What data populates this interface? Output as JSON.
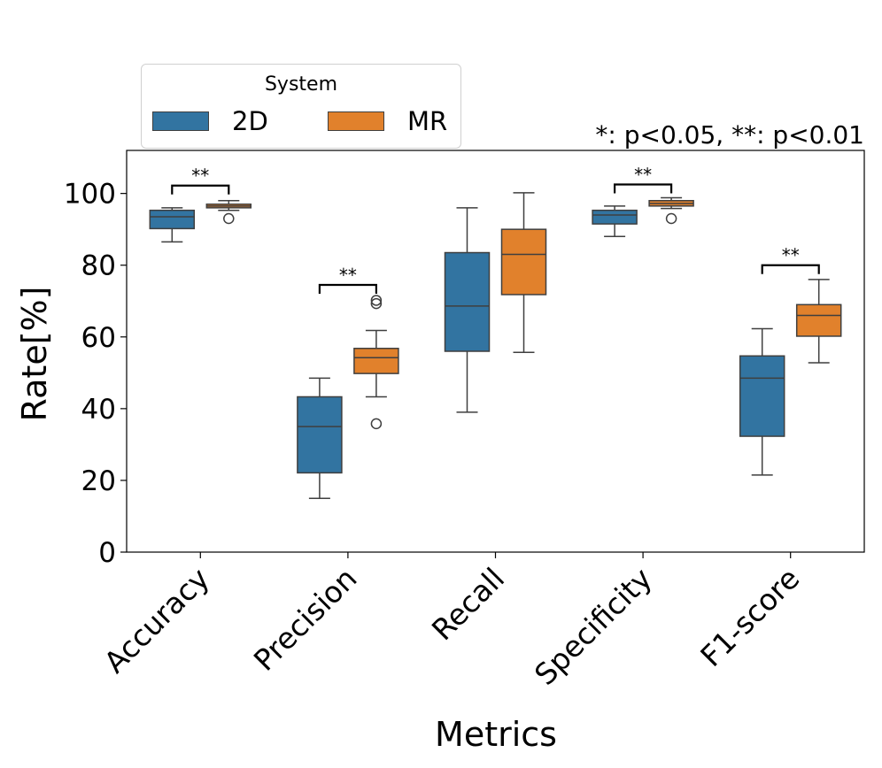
{
  "chart_data": {
    "type": "box",
    "xlabel": "Metrics",
    "ylabel": "Rate[%]",
    "ylim": [
      0,
      112
    ],
    "yticks": [
      0,
      20,
      40,
      60,
      80,
      100
    ],
    "annotation": "*: p<0.05, **: p<0.01",
    "categories": [
      "Accuracy",
      "Precision",
      "Recall",
      "Specificity",
      "F1-score"
    ],
    "legend": {
      "title": "System",
      "position": "top-left, above axes",
      "entries": [
        {
          "name": "2D",
          "color": "#3274a1"
        },
        {
          "name": "MR",
          "color": "#e1812c"
        }
      ]
    },
    "series": [
      {
        "name": "2D",
        "color": "#3274a1",
        "boxes": [
          {
            "whisker_low": 86.5,
            "q1": 90.2,
            "median": 93.5,
            "q3": 95.3,
            "whisker_high": 96.0,
            "outliers": []
          },
          {
            "whisker_low": 15.0,
            "q1": 22.1,
            "median": 35.0,
            "q3": 43.3,
            "whisker_high": 48.5,
            "outliers": []
          },
          {
            "whisker_low": 39.0,
            "q1": 56.0,
            "median": 68.6,
            "q3": 83.5,
            "whisker_high": 96.0,
            "outliers": []
          },
          {
            "whisker_low": 88.0,
            "q1": 91.5,
            "median": 94.0,
            "q3": 95.3,
            "whisker_high": 96.5,
            "outliers": []
          },
          {
            "whisker_low": 21.5,
            "q1": 32.3,
            "median": 48.5,
            "q3": 54.7,
            "whisker_high": 62.3,
            "outliers": []
          }
        ]
      },
      {
        "name": "MR",
        "color": "#e1812c",
        "boxes": [
          {
            "whisker_low": 95.3,
            "q1": 96.0,
            "median": 96.5,
            "q3": 97.0,
            "whisker_high": 98.0,
            "outliers": [
              93.0
            ]
          },
          {
            "whisker_low": 43.3,
            "q1": 49.8,
            "median": 54.2,
            "q3": 56.8,
            "whisker_high": 61.8,
            "outliers": [
              69.3,
              70.2,
              35.8
            ]
          },
          {
            "whisker_low": 55.7,
            "q1": 71.8,
            "median": 83.0,
            "q3": 90.0,
            "whisker_high": 100.2,
            "outliers": []
          },
          {
            "whisker_low": 95.8,
            "q1": 96.5,
            "median": 97.2,
            "q3": 98.0,
            "whisker_high": 98.8,
            "outliers": [
              93.0
            ]
          },
          {
            "whisker_low": 52.8,
            "q1": 60.2,
            "median": 66.0,
            "q3": 69.0,
            "whisker_high": 76.0,
            "outliers": []
          }
        ]
      }
    ],
    "significance": [
      {
        "category": "Accuracy",
        "label": "**",
        "y": 102.2
      },
      {
        "category": "Precision",
        "label": "**",
        "y": 74.5
      },
      {
        "category": "Specificity",
        "label": "**",
        "y": 102.5
      },
      {
        "category": "F1-score",
        "label": "**",
        "y": 80.0
      }
    ]
  }
}
